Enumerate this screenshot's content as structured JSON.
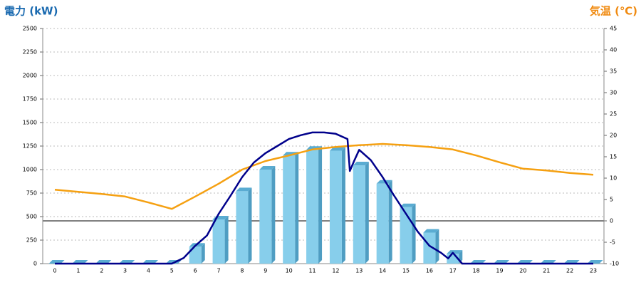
{
  "chart_data": {
    "type": "bar",
    "title": "電力 (kW)",
    "y2_title": "気温 (℃)",
    "categories": [
      0,
      1,
      2,
      3,
      4,
      5,
      6,
      7,
      8,
      9,
      10,
      11,
      12,
      13,
      14,
      15,
      16,
      17,
      18,
      19,
      20,
      21,
      22,
      23
    ],
    "ylim": [
      0,
      2500
    ],
    "yticks": [
      0,
      250,
      500,
      750,
      1000,
      1250,
      1500,
      1750,
      2000,
      2250,
      2500
    ],
    "y2lim": [
      -10,
      45
    ],
    "y2ticks": [
      -10,
      -5,
      0,
      5,
      10,
      15,
      20,
      25,
      30,
      35,
      40,
      45
    ],
    "grid": true,
    "series": [
      {
        "type": "bar",
        "color": "#87ceeb",
        "values": [
          0,
          0,
          0,
          0,
          0,
          0,
          180,
          470,
          770,
          1000,
          1150,
          1210,
          1200,
          1045,
          850,
          600,
          330,
          105,
          0,
          0,
          0,
          0,
          0,
          0
        ]
      },
      {
        "type": "line",
        "color": "#f5a011",
        "axis": "y2",
        "values": [
          7.3,
          6.8,
          6.3,
          5.7,
          4.3,
          2.8,
          5.7,
          8.7,
          12,
          14,
          15.3,
          16.7,
          17.3,
          17.7,
          18,
          17.7,
          17.3,
          16.7,
          15.3,
          13.7,
          12.2,
          11.8,
          11.2,
          10.8
        ]
      },
      {
        "type": "line",
        "color": "#00008b",
        "x": [
          0,
          5,
          5.5,
          6,
          6.5,
          7,
          7.5,
          8,
          8.5,
          9,
          9.5,
          10,
          10.5,
          11,
          11.5,
          12,
          12.5,
          12.6,
          12.8,
          13,
          13.5,
          14,
          14.5,
          15,
          15.5,
          16,
          16.5,
          16.8,
          17,
          17.4,
          23
        ],
        "values": [
          0,
          0,
          60,
          190,
          300,
          530,
          720,
          920,
          1075,
          1175,
          1250,
          1325,
          1365,
          1395,
          1395,
          1380,
          1325,
          985,
          1100,
          1210,
          1100,
          920,
          720,
          530,
          340,
          190,
          115,
          55,
          115,
          0,
          0
        ]
      }
    ]
  }
}
